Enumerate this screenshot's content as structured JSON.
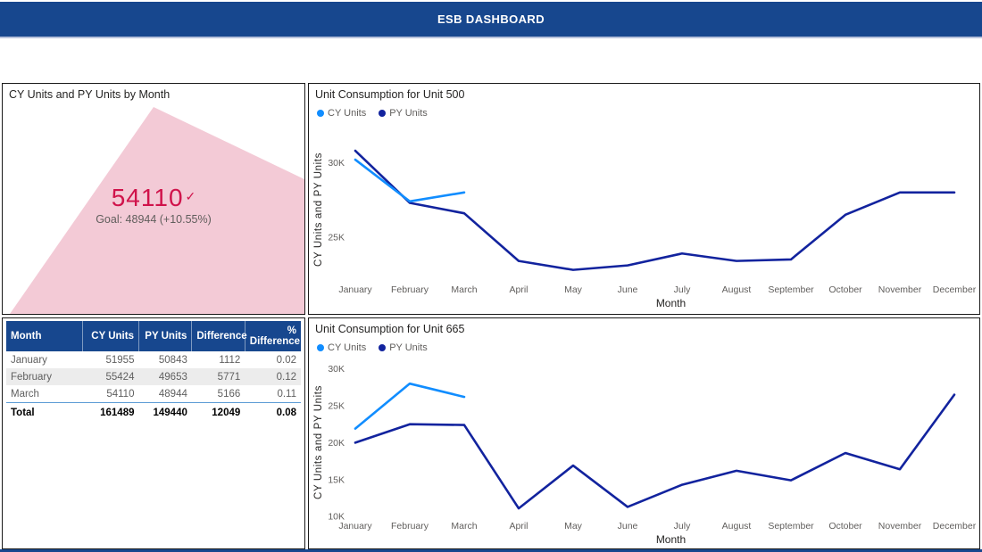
{
  "header": {
    "title": "ESB DASHBOARD"
  },
  "colors": {
    "banner_blue": "#17478E",
    "cy_blue": "#118DFF",
    "py_navy": "#12239E",
    "kpi_red": "#D0134B",
    "kpi_area_pink": "#F3CAD6",
    "table_header_bg": "#17478E",
    "table_alt_row": "#ECECEC",
    "table_total_divider": "#5B9BD5",
    "axis_text_gray": "#605E5C"
  },
  "kpi": {
    "title": "CY Units and PY Units by Month",
    "value": "54110",
    "indicator_icon": "✓",
    "goal_text": "Goal: 48944 (+10.55%)"
  },
  "table": {
    "columns": [
      "Month",
      "CY Units",
      "PY Units",
      "Difference",
      "% Difference"
    ],
    "rows": [
      [
        "January",
        "51955",
        "50843",
        "1112",
        "0.02"
      ],
      [
        "February",
        "55424",
        "49653",
        "5771",
        "0.12"
      ],
      [
        "March",
        "54110",
        "48944",
        "5166",
        "0.11"
      ]
    ],
    "total": [
      "Total",
      "161489",
      "149440",
      "12049",
      "0.08"
    ]
  },
  "chart_data": [
    {
      "type": "line",
      "title": "Unit Consumption for Unit 500",
      "xlabel": "Month",
      "ylabel": "CY Units and PY Units",
      "x": [
        "January",
        "February",
        "March",
        "April",
        "May",
        "June",
        "July",
        "August",
        "September",
        "October",
        "November",
        "December"
      ],
      "series": [
        {
          "name": "PY Units",
          "color": "#12239E",
          "values": [
            30800,
            27300,
            26600,
            23400,
            22800,
            23100,
            23900,
            23400,
            23500,
            26500,
            28000,
            28000
          ]
        },
        {
          "name": "CY Units",
          "color": "#118DFF",
          "values": [
            30200,
            27400,
            28000
          ]
        }
      ],
      "legend_order": [
        "CY Units",
        "PY Units"
      ],
      "legend_position": "top-left",
      "grid": false,
      "ylim": [
        22000,
        31700
      ],
      "yticks": [
        25000,
        30000
      ],
      "ytick_labels": [
        "25K",
        "30K"
      ]
    },
    {
      "type": "line",
      "title": "Unit Consumption for Unit 665",
      "xlabel": "Month",
      "ylabel": "CY Units and PY Units",
      "x": [
        "January",
        "February",
        "March",
        "April",
        "May",
        "June",
        "July",
        "August",
        "September",
        "October",
        "November",
        "December"
      ],
      "series": [
        {
          "name": "PY Units",
          "color": "#12239E",
          "values": [
            20000,
            22500,
            22400,
            11100,
            16900,
            11300,
            14300,
            16200,
            14900,
            18600,
            16400,
            26500
          ]
        },
        {
          "name": "CY Units",
          "color": "#118DFF",
          "values": [
            21900,
            28000,
            26200
          ]
        }
      ],
      "legend_order": [
        "CY Units",
        "PY Units"
      ],
      "legend_position": "top-left",
      "grid": false,
      "ylim": [
        9300,
        30800
      ],
      "yticks": [
        10000,
        15000,
        20000,
        25000,
        30000
      ],
      "ytick_labels": [
        "10K",
        "15K",
        "20K",
        "25K",
        "30K"
      ]
    }
  ]
}
